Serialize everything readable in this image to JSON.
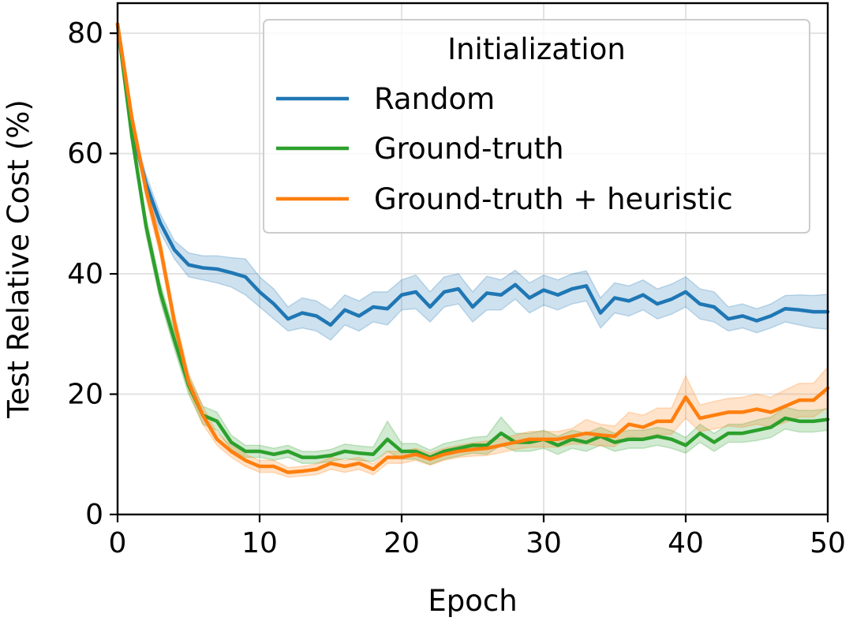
{
  "chart_data": {
    "type": "line",
    "xlabel": "Epoch",
    "ylabel": "Test Relative Cost (%)",
    "xlim": [
      0,
      50
    ],
    "ylim": [
      0,
      85
    ],
    "xticks": [
      0,
      10,
      20,
      30,
      40,
      50
    ],
    "yticks": [
      0,
      20,
      40,
      60,
      80
    ],
    "grid": true,
    "legend": {
      "title": "Initialization",
      "placement": "top-right"
    },
    "x": [
      0,
      1,
      2,
      3,
      4,
      5,
      6,
      7,
      8,
      9,
      10,
      11,
      12,
      13,
      14,
      15,
      16,
      17,
      18,
      19,
      20,
      21,
      22,
      23,
      24,
      25,
      26,
      27,
      28,
      29,
      30,
      31,
      32,
      33,
      34,
      35,
      36,
      37,
      38,
      39,
      40,
      41,
      42,
      43,
      44,
      45,
      46,
      47,
      48,
      49,
      50
    ],
    "series": [
      {
        "name": "Random",
        "color": "#1f77b4",
        "values": [
          81.5,
          64,
          55,
          48.5,
          44,
          41.5,
          41,
          40.8,
          40.2,
          39.5,
          37,
          35,
          32.5,
          33.5,
          33,
          31.5,
          34,
          33,
          34.5,
          34.2,
          36.5,
          37,
          34.5,
          37,
          37.5,
          34.5,
          36.8,
          36.5,
          38.2,
          36,
          37.3,
          36.5,
          37.5,
          38,
          33.5,
          36,
          35.5,
          36.5,
          35,
          35.8,
          37,
          35,
          34.5,
          32.5,
          33,
          32.2,
          33,
          34.2,
          34,
          33.7,
          33.7
        ],
        "lower": [
          81.5,
          63,
          53.5,
          47,
          42.5,
          39.5,
          39,
          38.5,
          37.8,
          36.5,
          34.5,
          32.5,
          30.5,
          31,
          30.5,
          29,
          31.5,
          30.5,
          32,
          31.5,
          34,
          34.2,
          32,
          34.5,
          35,
          32,
          34,
          34,
          35.8,
          33.5,
          34.8,
          34,
          35,
          35.5,
          31,
          33.5,
          33,
          34,
          32.5,
          33.3,
          34.5,
          32.5,
          32,
          30.5,
          31,
          30.2,
          31,
          32,
          31.5,
          31,
          30.8
        ],
        "upper": [
          81.5,
          65,
          56.5,
          50,
          45.5,
          43.5,
          43,
          43,
          42.7,
          42.5,
          39.5,
          37.5,
          34.5,
          36,
          35.5,
          34,
          36.5,
          35.5,
          37,
          37,
          39,
          39.8,
          37,
          39.5,
          40,
          37,
          39.6,
          39,
          40.6,
          38.5,
          39.8,
          39,
          40,
          40.5,
          36,
          38.5,
          38,
          39,
          37.5,
          38.3,
          39.5,
          37.5,
          37,
          34.5,
          35,
          34.2,
          35,
          36.4,
          36.5,
          36.4,
          36.6
        ]
      },
      {
        "name": "Ground-truth",
        "color": "#2ca02c",
        "values": [
          81.5,
          63,
          48,
          37,
          29,
          21.5,
          16.5,
          15.5,
          12,
          10.5,
          10.5,
          10,
          10.5,
          9.5,
          9.5,
          9.8,
          10.5,
          10.2,
          10,
          12.5,
          10.5,
          10.5,
          9.5,
          10.5,
          11,
          11.5,
          11.5,
          13.5,
          12,
          12,
          12.5,
          11.5,
          12.5,
          12,
          13,
          12,
          12.5,
          12.5,
          13,
          12.5,
          11.5,
          13.5,
          12,
          13.5,
          13.5,
          14,
          14.5,
          16,
          15.5,
          15.5,
          15.8
        ],
        "lower": [
          81.5,
          62,
          46.5,
          35.5,
          27.5,
          20,
          15,
          14,
          10.8,
          9.5,
          9.5,
          9,
          9.5,
          8.5,
          8.5,
          8.8,
          9.3,
          9,
          8.8,
          10.5,
          9.2,
          9.2,
          8.3,
          9.2,
          9.7,
          10.2,
          10,
          11.5,
          10.5,
          10.5,
          11,
          10,
          11,
          10.5,
          11.5,
          10.5,
          11,
          11,
          11.5,
          11,
          10.2,
          12,
          10.5,
          12,
          12,
          12.3,
          12.8,
          14.2,
          13.7,
          13.7,
          14
        ],
        "upper": [
          81.5,
          64,
          49.5,
          38.5,
          30.5,
          23,
          18,
          17,
          13.2,
          11.5,
          11.5,
          11,
          11.5,
          10.5,
          10.5,
          10.8,
          11.7,
          11.4,
          11.2,
          15.5,
          11.8,
          11.8,
          10.7,
          11.8,
          12.3,
          12.8,
          13,
          16.2,
          13.5,
          13.5,
          14,
          13,
          14,
          13.5,
          14.5,
          13.5,
          14,
          14,
          14.5,
          14,
          12.8,
          15,
          13.5,
          15,
          15,
          15.7,
          16.2,
          17.8,
          17.3,
          17.3,
          17.6
        ]
      },
      {
        "name": "Ground-truth + heuristic",
        "color": "#ff7f0e",
        "values": [
          81.5,
          66,
          54,
          44.5,
          32,
          22,
          16.5,
          12.5,
          10.5,
          9,
          8,
          8,
          7,
          7.2,
          7.5,
          8.5,
          8,
          8.5,
          7.5,
          9.5,
          9.5,
          10,
          9.2,
          10,
          10.5,
          10.8,
          11,
          11.5,
          12,
          12.5,
          12.5,
          12.5,
          13,
          13.5,
          13.2,
          13,
          15,
          14.5,
          15.5,
          15.5,
          19.5,
          16,
          16.5,
          17,
          17,
          17.5,
          17,
          18,
          19,
          19,
          21
        ],
        "lower": [
          81.5,
          65,
          52.5,
          43,
          30.5,
          20.5,
          15,
          11.5,
          9.5,
          8,
          7,
          7,
          6.2,
          6.4,
          6.6,
          7.5,
          7,
          7.5,
          6.6,
          8.5,
          8.5,
          9,
          8.2,
          9,
          9.5,
          9.7,
          9.8,
          10.3,
          10.8,
          11.2,
          11.2,
          11.2,
          11.7,
          11.7,
          11.4,
          11.3,
          13,
          12.5,
          13.3,
          13.3,
          16,
          13.8,
          14.2,
          14.7,
          14.5,
          15,
          14.5,
          15.3,
          16.2,
          16.2,
          17.8
        ],
        "upper": [
          81.5,
          67,
          55.5,
          46,
          33.5,
          23.5,
          18,
          13.5,
          11.5,
          10,
          9,
          9,
          7.8,
          8,
          8.4,
          9.5,
          9,
          9.5,
          8.4,
          10.5,
          10.5,
          11,
          10.2,
          11,
          11.5,
          11.9,
          12.2,
          12.7,
          13.2,
          13.8,
          13.8,
          13.8,
          14.3,
          15.8,
          15,
          14.7,
          17,
          16.5,
          17.7,
          17.7,
          23,
          18.2,
          18.8,
          19.3,
          19.5,
          20,
          19.5,
          20.7,
          21.8,
          21.8,
          24.5
        ]
      }
    ]
  }
}
